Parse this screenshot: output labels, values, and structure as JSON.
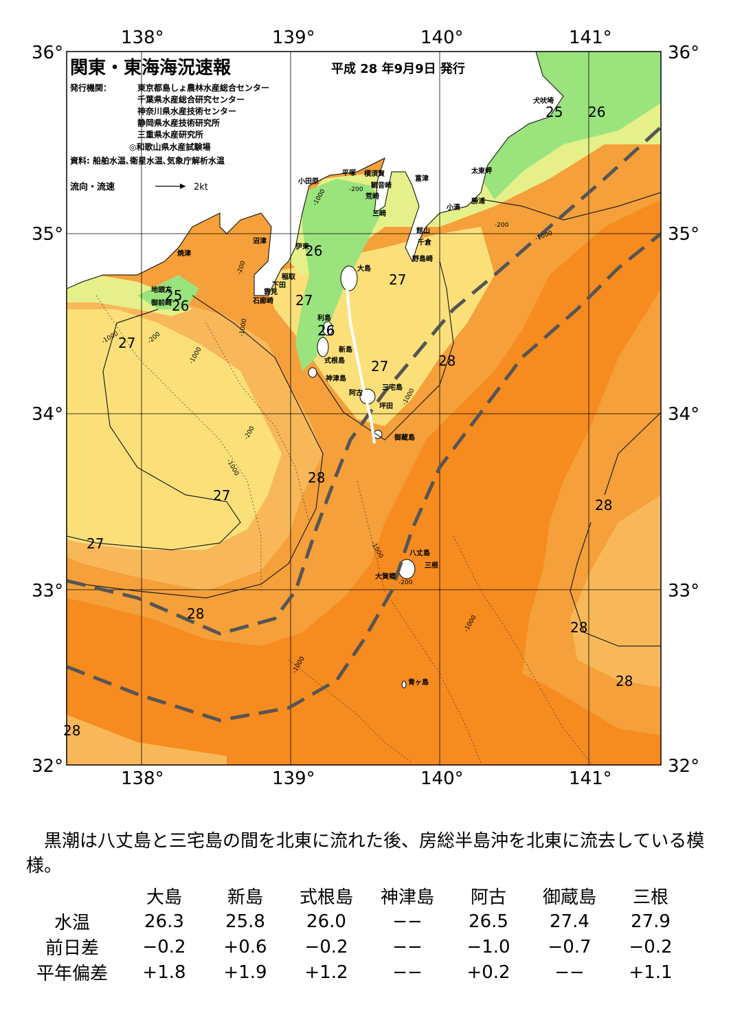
{
  "header": {
    "title": "関東・東海海況速報",
    "date": "平成 28 年9月9日 発行",
    "issuer_label": "発行機関：",
    "issuers": [
      "東京都島しょ農林水産総合センター",
      "千葉県水産総合研究センター",
      "神奈川県水産技術センター",
      "静岡県水産技術研究所",
      "三重県水産研究所",
      "◎和歌山県水産試験場"
    ],
    "source": "資料: 船舶水温､衛星水温､気象庁解析水温",
    "flow_label": "流向・流速",
    "flow_scale": "2kt"
  },
  "axes": {
    "lon_ticks": [
      "138°",
      "139°",
      "140°",
      "141°"
    ],
    "lat_ticks": [
      "36°",
      "35°",
      "34°",
      "33°",
      "32°"
    ]
  },
  "place_names": [
    "犬吠埼",
    "太東岬",
    "勝浦",
    "小湊",
    "富津",
    "横須賀",
    "観音崎",
    "平塚",
    "小田原",
    "荒崎",
    "三崎",
    "館山",
    "千倉",
    "野島崎",
    "沼津",
    "伊東",
    "焼津",
    "稲取",
    "下田",
    "雲見",
    "石廊崎",
    "地頭方",
    "御前崎",
    "大島",
    "利島",
    "新島",
    "式根島",
    "神津島",
    "阿古",
    "三宅島",
    "坪田",
    "御蔵島",
    "八丈島",
    "三根",
    "大賀郷",
    "青ヶ島"
  ],
  "isotherm_labels": [
    "25",
    "26",
    "26",
    "25",
    "26",
    "26",
    "27",
    "27",
    "27",
    "26",
    "27",
    "28",
    "27",
    "27",
    "28",
    "28",
    "28",
    "28",
    "28",
    "28"
  ],
  "depth_labels": [
    "-200",
    "-1000",
    "-200",
    "-1000",
    "-200",
    "-1000",
    "-200",
    "-1000",
    "-1000",
    "-1000",
    "-200",
    "-1000",
    "-1000",
    "-1000",
    "-1000",
    "-200"
  ],
  "legend_colors": {
    "t25": "#9be37d",
    "t26": "#e6f08a",
    "t27": "#fbe07a",
    "t27b": "#f8b85a",
    "t28": "#f5a03a",
    "t29": "#f68b1f",
    "kuroshio": "#555555"
  },
  "summary": "黒潮は八丈島と三宅島の間を北東に流れた後、房総半島沖を北東に流去している模様。",
  "table": {
    "columns": [
      "大島",
      "新島",
      "式根島",
      "神津島",
      "阿古",
      "御蔵島",
      "三根"
    ],
    "rows": [
      {
        "label": "水温",
        "values": [
          "26.3",
          "25.8",
          "26.0",
          "−−",
          "26.5",
          "27.4",
          "27.9"
        ]
      },
      {
        "label": "前日差",
        "values": [
          "−0.2",
          "+0.6",
          "−0.2",
          "−−",
          "−1.0",
          "−0.7",
          "−0.2"
        ]
      },
      {
        "label": "平年偏差",
        "values": [
          "+1.8",
          "+1.9",
          "+1.2",
          "−−",
          "+0.2",
          "−−",
          "+1.1"
        ]
      }
    ]
  }
}
